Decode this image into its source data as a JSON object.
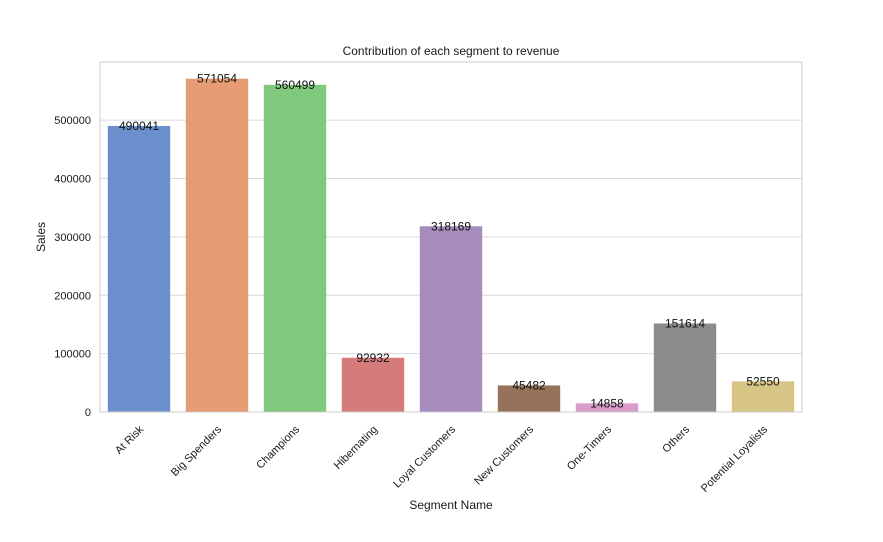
{
  "chart_data": {
    "type": "bar",
    "title": "Contribution of each segment to revenue",
    "xlabel": "Segment Name",
    "ylabel": "Sales",
    "categories": [
      "At Risk",
      "Big Spenders",
      "Champions",
      "Hibernating",
      "Loyal Customers",
      "New Customers",
      "One-Timers",
      "Others",
      "Potential Loyalists"
    ],
    "values": [
      490041,
      571054,
      560499,
      92932,
      318169,
      45482,
      14858,
      151614,
      52550
    ],
    "data_labels": [
      "490041",
      "571054",
      "560499",
      "92932",
      "318169",
      "45482",
      "14858",
      "151614",
      "52550"
    ],
    "yticks": [
      0,
      100000,
      200000,
      300000,
      400000,
      500000
    ],
    "ytick_labels": [
      "0",
      "100000",
      "200000",
      "300000",
      "400000",
      "500000"
    ],
    "ylim": [
      0,
      599607
    ],
    "grid": "horizontal",
    "legend": "none",
    "colors": [
      "#6a8fcc",
      "#e59c72",
      "#80c97c",
      "#d57b7c",
      "#a68bbd",
      "#957259",
      "#d99ccb",
      "#8c8c8c",
      "#d6c584"
    ]
  }
}
